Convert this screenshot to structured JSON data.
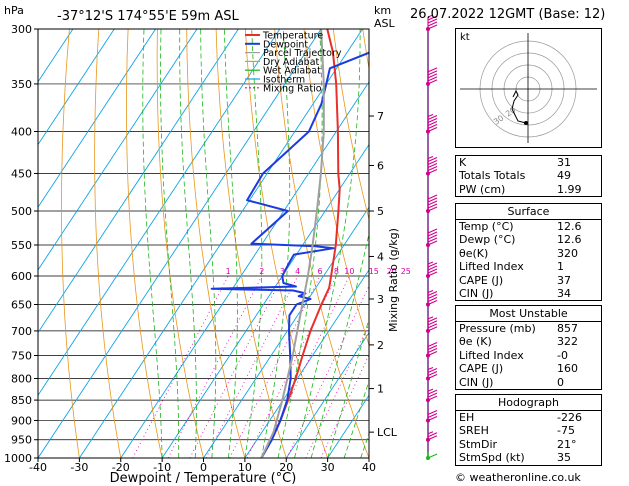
{
  "header": {
    "unit_hpa": "hPa",
    "location": "-37°12'S  174°55'E  59m  ASL",
    "unit_km": "km",
    "unit_asl": "ASL",
    "date": "26.07.2022  12GMT  (Base: 12)"
  },
  "colors": {
    "temperature": "#e8302a",
    "dewpoint": "#1b3be0",
    "parcel": "#a0a0a0",
    "dry_adiabat": "#e8961c",
    "wet_adiabat": "#18b818",
    "isotherm": "#12a4e6",
    "mixing_ratio": "#e000b0",
    "wind_barb": "#d0008a"
  },
  "chart_data": {
    "type": "line",
    "xlabel": "Dewpoint / Temperature (°C)",
    "ylabel_right": "Mixing Ratio (g/kg)",
    "xlim": [
      -40,
      40
    ],
    "ylim": [
      1000,
      300
    ],
    "y_scale": "log",
    "x_ticks": [
      "-40",
      "-30",
      "-20",
      "-10",
      "0",
      "10",
      "20",
      "30",
      "40"
    ],
    "p_ticks": [
      "300",
      "350",
      "400",
      "450",
      "500",
      "550",
      "600",
      "650",
      "700",
      "750",
      "800",
      "850",
      "900",
      "950",
      "1000"
    ],
    "km_ticks": [
      {
        "label": "7",
        "p": 383
      },
      {
        "label": "6",
        "p": 440
      },
      {
        "label": "5",
        "p": 500
      },
      {
        "label": "4",
        "p": 568
      },
      {
        "label": "3",
        "p": 640
      },
      {
        "label": "2",
        "p": 728
      },
      {
        "label": "1",
        "p": 823
      },
      {
        "label": "LCL",
        "p": 930
      }
    ],
    "mixing_ratio_labels": [
      "1",
      "2",
      "3",
      "4",
      "6",
      "8",
      "10",
      "15",
      "20",
      "25"
    ],
    "mixing_ratio_values": [
      1,
      2,
      3,
      4,
      6,
      8,
      10,
      15,
      20,
      25
    ],
    "legend": [
      "Temperature",
      "Dewpoint",
      "Parcel Trajectory",
      "Dry Adiabat",
      "Wet Adiabat",
      "Isotherm",
      "Mixing Ratio"
    ],
    "legend_position": "top-left",
    "series": [
      {
        "name": "Temperature",
        "points": [
          [
            1000,
            14
          ],
          [
            950,
            13.6
          ],
          [
            900,
            12.6
          ],
          [
            850,
            11.2
          ],
          [
            800,
            9.6
          ],
          [
            750,
            7.6
          ],
          [
            700,
            5.6
          ],
          [
            650,
            4.0
          ],
          [
            620,
            3.2
          ],
          [
            600,
            1.8
          ],
          [
            550,
            -2.0
          ],
          [
            500,
            -6.8
          ],
          [
            470,
            -10.0
          ],
          [
            450,
            -12.8
          ],
          [
            400,
            -19.6
          ],
          [
            350,
            -27.6
          ],
          [
            320,
            -33.5
          ],
          [
            300,
            -38.5
          ]
        ]
      },
      {
        "name": "Dewpoint",
        "points": [
          [
            1000,
            14
          ],
          [
            950,
            13.6
          ],
          [
            900,
            12.6
          ],
          [
            850,
            11.0
          ],
          [
            800,
            8.4
          ],
          [
            750,
            4.6
          ],
          [
            700,
            0.4
          ],
          [
            670,
            -2.0
          ],
          [
            650,
            -2.0
          ],
          [
            640,
            0.5
          ],
          [
            635,
            -2.8
          ],
          [
            630,
            -1.6
          ],
          [
            625,
            -5.0
          ],
          [
            622,
            -25.0
          ],
          [
            618,
            -5.0
          ],
          [
            612,
            -8.6
          ],
          [
            600,
            -10.0
          ],
          [
            580,
            -10.4
          ],
          [
            565,
            -10.6
          ],
          [
            555,
            -2.0
          ],
          [
            552,
            -6.8
          ],
          [
            548,
            -22.6
          ],
          [
            500,
            -19.0
          ],
          [
            485,
            -30.6
          ],
          [
            450,
            -31.0
          ],
          [
            400,
            -26.6
          ],
          [
            370,
            -28.0
          ],
          [
            350,
            -30.0
          ],
          [
            335,
            -31.6
          ],
          [
            300,
            -14.0
          ]
        ]
      },
      {
        "name": "Parcel Trajectory",
        "points": [
          [
            1000,
            14
          ],
          [
            930,
            12.8
          ],
          [
            850,
            9.8
          ],
          [
            800,
            7.6
          ],
          [
            750,
            5.2
          ],
          [
            700,
            2.4
          ],
          [
            650,
            -0.6
          ],
          [
            600,
            -3.8
          ],
          [
            550,
            -7.6
          ],
          [
            500,
            -12.0
          ],
          [
            450,
            -17.0
          ],
          [
            400,
            -23.0
          ],
          [
            350,
            -30.6
          ],
          [
            300,
            -40.0
          ]
        ]
      }
    ],
    "wind_barbs": [
      {
        "p": 1000,
        "speed_kt": 10
      },
      {
        "p": 950,
        "speed_kt": 25
      },
      {
        "p": 900,
        "speed_kt": 30
      },
      {
        "p": 850,
        "speed_kt": 35
      },
      {
        "p": 800,
        "speed_kt": 35
      },
      {
        "p": 750,
        "speed_kt": 40
      },
      {
        "p": 700,
        "speed_kt": 45
      },
      {
        "p": 650,
        "speed_kt": 45
      },
      {
        "p": 600,
        "speed_kt": 45
      },
      {
        "p": 550,
        "speed_kt": 50
      },
      {
        "p": 500,
        "speed_kt": 50
      },
      {
        "p": 450,
        "speed_kt": 55
      },
      {
        "p": 400,
        "speed_kt": 55
      },
      {
        "p": 350,
        "speed_kt": 50
      },
      {
        "p": 300,
        "speed_kt": 45
      }
    ]
  },
  "hodograph": {
    "unit": "kt",
    "ring_labels": [
      "20",
      "30"
    ]
  },
  "indices": [
    {
      "label": "K",
      "value": "31"
    },
    {
      "label": "Totals Totals",
      "value": "49"
    },
    {
      "label": "PW (cm)",
      "value": "1.99"
    }
  ],
  "surface": {
    "title": "Surface",
    "rows": [
      {
        "label": "Temp (°C)",
        "value": "12.6"
      },
      {
        "label": "Dewp (°C)",
        "value": "12.6"
      },
      {
        "label": "θe(K)",
        "value": "320"
      },
      {
        "label": "Lifted Index",
        "value": "1"
      },
      {
        "label": "CAPE (J)",
        "value": "37"
      },
      {
        "label": "CIN (J)",
        "value": "34"
      }
    ]
  },
  "most_unstable": {
    "title": "Most Unstable",
    "rows": [
      {
        "label": "Pressure (mb)",
        "value": "857"
      },
      {
        "label": "θe (K)",
        "value": "322"
      },
      {
        "label": "Lifted Index",
        "value": "-0"
      },
      {
        "label": "CAPE (J)",
        "value": "160"
      },
      {
        "label": "CIN (J)",
        "value": "0"
      }
    ]
  },
  "hodograph_panel": {
    "title": "Hodograph",
    "rows": [
      {
        "label": "EH",
        "value": "-226"
      },
      {
        "label": "SREH",
        "value": "-75"
      },
      {
        "label": "StmDir",
        "value": "21°"
      },
      {
        "label": "StmSpd (kt)",
        "value": "35"
      }
    ]
  },
  "credit": "© weatheronline.co.uk"
}
